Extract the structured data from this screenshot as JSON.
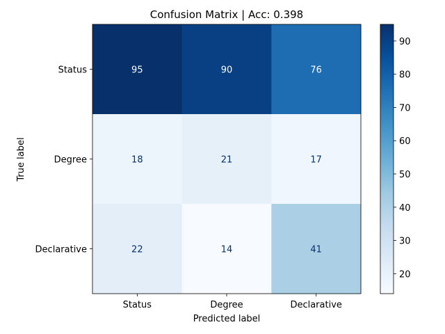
{
  "chart_data": {
    "type": "heatmap",
    "title": "Confusion Matrix | Acc: 0.398",
    "xlabel": "Predicted label",
    "ylabel": "True label",
    "x_categories": [
      "Status",
      "Degree",
      "Declarative"
    ],
    "y_categories": [
      "Status",
      "Degree",
      "Declarative"
    ],
    "matrix": [
      [
        95,
        90,
        76
      ],
      [
        18,
        21,
        17
      ],
      [
        22,
        14,
        41
      ]
    ],
    "colormap": "Blues",
    "colorbar": {
      "vmin": 14,
      "vmax": 95,
      "ticks": [
        20,
        30,
        40,
        50,
        60,
        70,
        80,
        90
      ]
    },
    "text_colors": {
      "dark": "#08306b",
      "light": "#ffffff"
    }
  }
}
